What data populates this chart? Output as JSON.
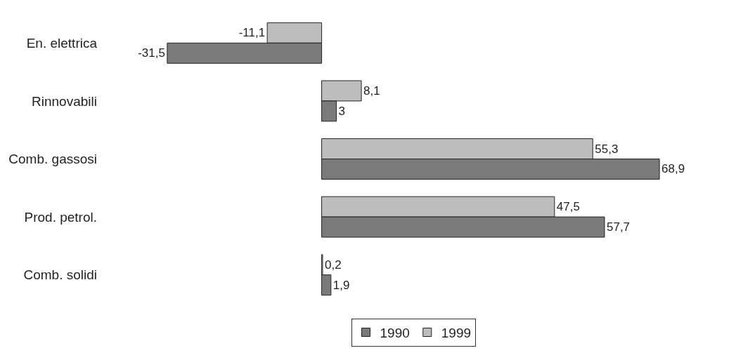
{
  "chart_data": {
    "type": "bar",
    "orientation": "horizontal",
    "categories": [
      "En. elettrica",
      "Rinnovabili",
      "Comb. gassosi",
      "Prod. petrol.",
      "Comb. solidi"
    ],
    "series": [
      {
        "name": "1990",
        "color": "#7a7a7a",
        "values": [
          -31.5,
          3,
          68.9,
          57.7,
          1.9
        ],
        "value_labels": [
          "-31,5",
          "3",
          "68,9",
          "57,7",
          "1,9"
        ]
      },
      {
        "name": "1999",
        "color": "#bdbdbd",
        "values": [
          -11.1,
          8.1,
          55.3,
          47.5,
          0.2
        ],
        "value_labels": [
          "-11,1",
          "8,1",
          "55,3",
          "47,5",
          "0,2"
        ]
      }
    ],
    "tick_labels": "y",
    "legend": "bottom"
  }
}
